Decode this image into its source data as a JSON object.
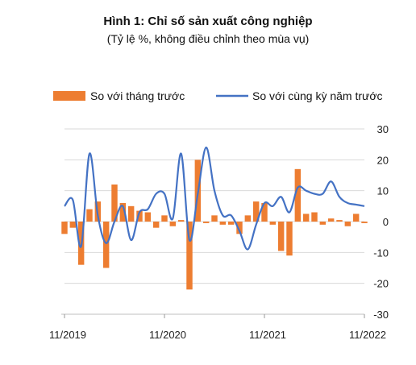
{
  "chart_data": {
    "type": "bar+line",
    "title": "Hình 1: Chỉ số sản xuất công nghiệp",
    "subtitle": "(Tỷ lệ %, không điều chỉnh theo mùa vụ)",
    "ylim": [
      -30,
      30
    ],
    "yticks": [
      "30",
      "20",
      "10",
      "0",
      "-10",
      "-20",
      "-30"
    ],
    "ytick_values": [
      30,
      20,
      10,
      0,
      -10,
      -20,
      -30
    ],
    "y_axis_position": "right",
    "x_tick_labels": [
      "11/2019",
      "11/2020",
      "11/2021",
      "11/2022"
    ],
    "x_tick_index": [
      0,
      12,
      24,
      36
    ],
    "grid": true,
    "legend_position": "top",
    "x": [
      "11/2019",
      "12/2019",
      "1/2020",
      "2/2020",
      "3/2020",
      "4/2020",
      "5/2020",
      "6/2020",
      "7/2020",
      "8/2020",
      "9/2020",
      "10/2020",
      "11/2020",
      "12/2020",
      "1/2021",
      "2/2021",
      "3/2021",
      "4/2021",
      "5/2021",
      "6/2021",
      "7/2021",
      "8/2021",
      "9/2021",
      "10/2021",
      "11/2021",
      "12/2021",
      "1/2022",
      "2/2022",
      "3/2022",
      "4/2022",
      "5/2022",
      "6/2022",
      "7/2022",
      "8/2022",
      "9/2022",
      "10/2022",
      "11/2022"
    ],
    "series": [
      {
        "name": "So với tháng trước",
        "kind": "bar",
        "color": "#ED7D31",
        "values": [
          -4,
          -2,
          -14,
          4,
          6.5,
          -15,
          12,
          6,
          5,
          3.5,
          3,
          -2,
          2,
          -1.5,
          0.5,
          -22,
          20,
          -0.5,
          2,
          -1,
          -1,
          -4,
          2,
          6.5,
          6,
          -1,
          -9.5,
          -11,
          17,
          2.5,
          3,
          -1,
          1,
          0.5,
          -1.5,
          2.5,
          -0.5
        ]
      },
      {
        "name": "So với cùng kỳ năm trước",
        "kind": "line",
        "color": "#4472C4",
        "values": [
          5,
          7,
          -8,
          22,
          2,
          -7,
          0,
          5,
          -6,
          3,
          4,
          9,
          9,
          1,
          22,
          -6,
          9,
          24,
          10,
          2,
          2,
          -3,
          -9,
          -1,
          6,
          5,
          8,
          3,
          11,
          10,
          9,
          9,
          13,
          8,
          6,
          5.5,
          5
        ]
      }
    ]
  },
  "legend": {
    "bar_label": "So với tháng trước",
    "line_label": "So với cùng kỳ năm trước"
  }
}
